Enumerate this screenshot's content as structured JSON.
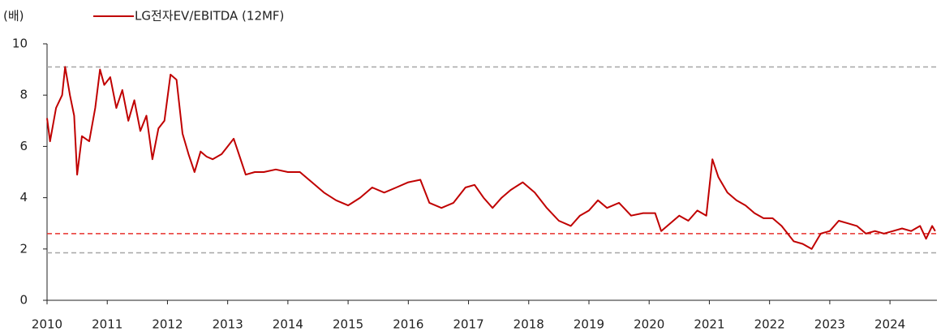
{
  "chart_data": {
    "type": "line",
    "ylabel": "(배)",
    "xlim": [
      2010,
      2024.78
    ],
    "xticks": [
      2010,
      2011,
      2012,
      2013,
      2014,
      2015,
      2016,
      2017,
      2018,
      2019,
      2020,
      2021,
      2022,
      2023,
      2024
    ],
    "ylim": [
      0,
      10
    ],
    "yticks": [
      0,
      2,
      4,
      6,
      8,
      10
    ],
    "reference_lines": [
      {
        "value": 9.1,
        "color": "#a6a6a6"
      },
      {
        "value": 2.6,
        "color": "#e8322d"
      },
      {
        "value": 1.85,
        "color": "#a6a6a6"
      }
    ],
    "x": [
      2010.0,
      2010.05,
      2010.15,
      2010.25,
      2010.3,
      2010.38,
      2010.45,
      2010.5,
      2010.58,
      2010.7,
      2010.8,
      2010.88,
      2010.95,
      2011.05,
      2011.15,
      2011.25,
      2011.35,
      2011.45,
      2011.55,
      2011.65,
      2011.75,
      2011.85,
      2011.95,
      2012.05,
      2012.15,
      2012.25,
      2012.35,
      2012.45,
      2012.55,
      2012.65,
      2012.75,
      2012.9,
      2013.0,
      2013.1,
      2013.2,
      2013.3,
      2013.45,
      2013.6,
      2013.8,
      2014.0,
      2014.2,
      2014.4,
      2014.6,
      2014.8,
      2015.0,
      2015.2,
      2015.4,
      2015.6,
      2015.8,
      2016.0,
      2016.2,
      2016.35,
      2016.55,
      2016.75,
      2016.95,
      2017.1,
      2017.25,
      2017.4,
      2017.55,
      2017.7,
      2017.9,
      2018.1,
      2018.3,
      2018.5,
      2018.7,
      2018.85,
      2019.0,
      2019.15,
      2019.3,
      2019.5,
      2019.7,
      2019.9,
      2020.1,
      2020.2,
      2020.35,
      2020.5,
      2020.65,
      2020.8,
      2020.95,
      2021.05,
      2021.15,
      2021.3,
      2021.45,
      2021.6,
      2021.75,
      2021.9,
      2022.05,
      2022.2,
      2022.4,
      2022.55,
      2022.7,
      2022.85,
      2023.0,
      2023.15,
      2023.3,
      2023.45,
      2023.6,
      2023.75,
      2023.9,
      2024.05,
      2024.2,
      2024.35,
      2024.5,
      2024.6,
      2024.7,
      2024.75
    ],
    "series": [
      {
        "name": "LG전자EV/EBITDA (12MF)",
        "color": "#c00000",
        "values": [
          7.1,
          6.2,
          7.5,
          8.0,
          9.1,
          8.0,
          7.2,
          4.9,
          6.4,
          6.2,
          7.5,
          9.0,
          8.4,
          8.7,
          7.5,
          8.2,
          7.0,
          7.8,
          6.6,
          7.2,
          5.5,
          6.7,
          7.0,
          8.8,
          8.6,
          6.5,
          5.7,
          5.0,
          5.8,
          5.6,
          5.5,
          5.7,
          6.0,
          6.3,
          5.6,
          4.9,
          5.0,
          5.0,
          5.1,
          5.0,
          5.0,
          4.6,
          4.2,
          3.9,
          3.7,
          4.0,
          4.4,
          4.2,
          4.4,
          4.6,
          4.7,
          3.8,
          3.6,
          3.8,
          4.4,
          4.5,
          4.0,
          3.6,
          4.0,
          4.3,
          4.6,
          4.2,
          3.6,
          3.1,
          2.9,
          3.3,
          3.5,
          3.9,
          3.6,
          3.8,
          3.3,
          3.4,
          3.4,
          2.7,
          3.0,
          3.3,
          3.1,
          3.5,
          3.3,
          5.5,
          4.8,
          4.2,
          3.9,
          3.7,
          3.4,
          3.2,
          3.2,
          2.9,
          2.3,
          2.2,
          2.0,
          2.6,
          2.7,
          3.1,
          3.0,
          2.9,
          2.6,
          2.7,
          2.6,
          2.7,
          2.8,
          2.7,
          2.9,
          2.4,
          2.9,
          2.7
        ]
      }
    ]
  }
}
